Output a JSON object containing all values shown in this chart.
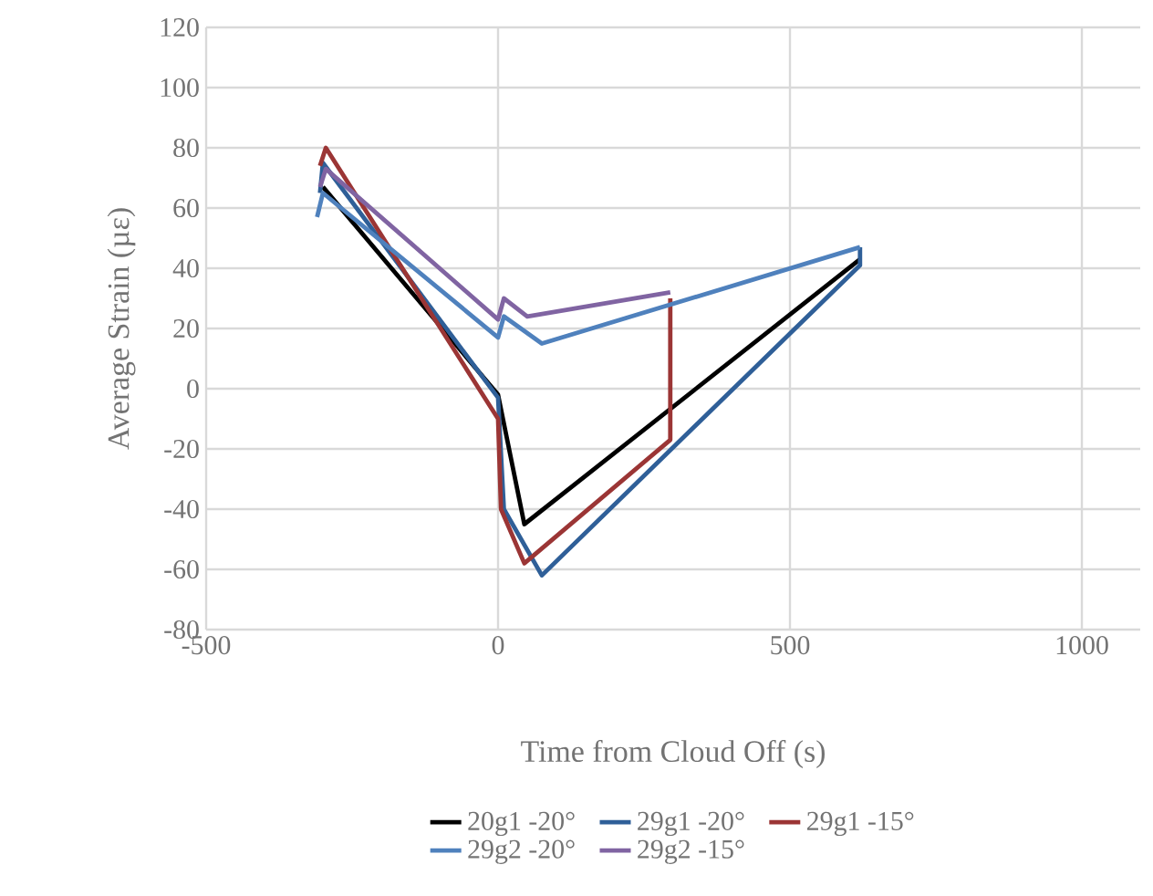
{
  "chart_data": {
    "type": "line",
    "xlabel": "Time from Cloud Off (s)",
    "ylabel": "Average Strain (µε)",
    "xlim": [
      -500,
      1100
    ],
    "xticks": [
      -500,
      0,
      500,
      1000
    ],
    "ylim": [
      -80,
      120
    ],
    "yticks": [
      -80,
      -60,
      -40,
      -20,
      0,
      20,
      40,
      60,
      80,
      100,
      120
    ],
    "grid": true,
    "legend": "bottom",
    "marker": "none",
    "line_style": "solid",
    "series": [
      {
        "name": "20g1 -20°",
        "color": "#000000",
        "x": [
          -300,
          0,
          45,
          620
        ],
        "values": [
          67,
          -2,
          -45,
          43
        ]
      },
      {
        "name": "29g1 -20°",
        "color": "#2f5f98",
        "x": [
          -305,
          -300,
          0,
          10,
          75,
          620,
          620
        ],
        "values": [
          65,
          75,
          -3,
          -40,
          -62,
          41,
          47
        ]
      },
      {
        "name": "29g1 -15°",
        "color": "#9b3535",
        "x": [
          -305,
          -295,
          0,
          5,
          45,
          295,
          295
        ],
        "values": [
          74,
          80,
          -10,
          -40,
          -58,
          -17,
          30
        ]
      },
      {
        "name": "29g2 -20°",
        "color": "#4f81bd",
        "x": [
          -310,
          -300,
          0,
          10,
          75,
          620
        ],
        "values": [
          57,
          65,
          17,
          24,
          15,
          47
        ]
      },
      {
        "name": "29g2 -15°",
        "color": "#8064a2",
        "x": [
          -305,
          -295,
          0,
          10,
          50,
          295
        ],
        "values": [
          67,
          73,
          23,
          30,
          24,
          32
        ]
      }
    ]
  }
}
